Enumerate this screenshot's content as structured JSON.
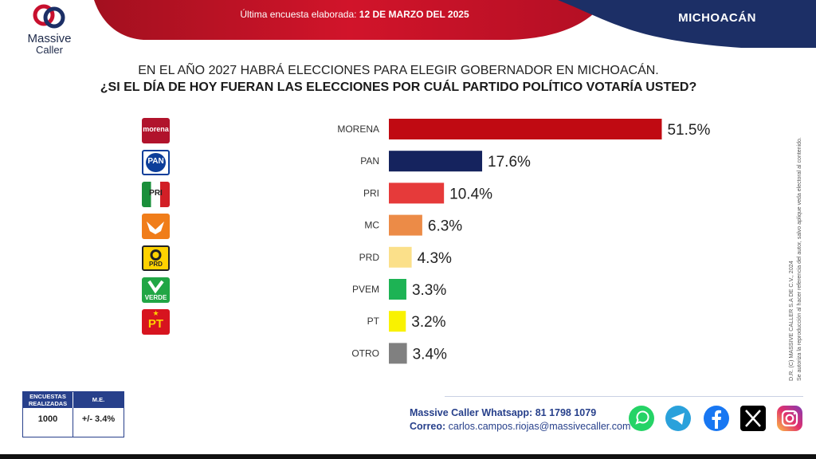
{
  "brand": {
    "name_line1": "Massive",
    "name_line2": "Caller"
  },
  "header": {
    "date_prefix": "Última encuesta elaborada:",
    "date_value": "12 DE MARZO DEL 2025",
    "region": "MICHOACÁN"
  },
  "question": {
    "line1": "EN EL AÑO 2027 HABRÁ ELECCIONES PARA ELEGIR GOBERNADOR EN MICHOACÁN.",
    "line2": "¿SI EL DÍA DE HOY FUERAN LAS ELECCIONES POR CUÁL PARTIDO POLÍTICO VOTARÍA USTED?"
  },
  "party_logos": [
    {
      "icon": "morena-logo",
      "text": "morena"
    },
    {
      "icon": "pan-logo",
      "text": "PAN"
    },
    {
      "icon": "pri-logo",
      "text": "PRI"
    },
    {
      "icon": "mc-logo",
      "text": ""
    },
    {
      "icon": "prd-logo",
      "text": "PRD"
    },
    {
      "icon": "verde-logo",
      "text": "VERDE"
    },
    {
      "icon": "pt-logo",
      "text": "PT"
    }
  ],
  "chart_data": {
    "type": "bar",
    "orientation": "horizontal",
    "categories": [
      "MORENA",
      "PAN",
      "PRI",
      "MC",
      "PRD",
      "PVEM",
      "PT",
      "OTRO"
    ],
    "values": [
      51.5,
      17.6,
      10.4,
      6.3,
      4.3,
      3.3,
      3.2,
      3.4
    ],
    "value_labels": [
      "51.5%",
      "17.6%",
      "10.4%",
      "6.3%",
      "4.3%",
      "3.3%",
      "3.2%",
      "3.4%"
    ],
    "colors": [
      "#c00a12",
      "#15235e",
      "#e63a3a",
      "#ec8b47",
      "#fbe08a",
      "#1db354",
      "#f9f200",
      "#808080"
    ],
    "grid": false,
    "legend": "none"
  },
  "stats": {
    "col1_header": "ENCUESTAS REALIZADAS",
    "col2_header": "M.E.",
    "col1_value": "1000",
    "col2_value": "+/- 3.4%"
  },
  "contact": {
    "whatsapp": "Massive Caller Whatsapp: 81 1798 1079",
    "email_label": "Correo:",
    "email": "carlos.campos.riojas@massivecaller.com"
  },
  "credit": {
    "line1": "D.R. (C) MASSIVE CALLER S.A DE C.V., 2024",
    "line2": "Se autoriza la reproducción al hacer referencia del autor, salvo aplique veda electoral al contenido."
  },
  "social_icons": [
    "whatsapp-icon",
    "telegram-icon",
    "facebook-icon",
    "x-icon",
    "instagram-icon"
  ],
  "theme": {
    "red": "#c8102e",
    "navy": "#1c2f66"
  }
}
